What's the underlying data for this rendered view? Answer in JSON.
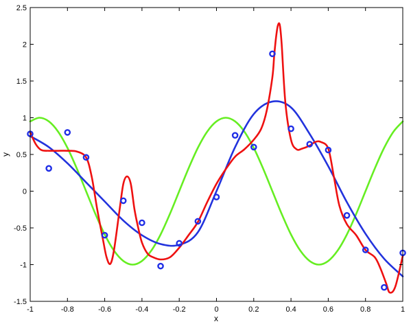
{
  "chart_data": {
    "type": "line",
    "title": "",
    "xlabel": "x",
    "ylabel": "y",
    "xlim": [
      -1,
      1
    ],
    "ylim": [
      -1.5,
      2.5
    ],
    "xticks": [
      "-1",
      "-0.8",
      "-0.6",
      "-0.4",
      "-0.2",
      "0",
      "0.2",
      "0.4",
      "0.6",
      "0.8",
      "1"
    ],
    "yticks": [
      "-1.5",
      "-1",
      "-0.5",
      "0",
      "0.5",
      "1",
      "1.5",
      "2",
      "2.5"
    ],
    "grid": false,
    "legend": "none",
    "points": {
      "color": "#1f2ee6",
      "x": [
        -1,
        -0.9,
        -0.8,
        -0.7,
        -0.6,
        -0.5,
        -0.4,
        -0.3,
        -0.2,
        -0.1,
        0,
        0.1,
        0.2,
        0.3,
        0.4,
        0.5,
        0.6,
        0.7,
        0.8,
        0.9,
        1
      ],
      "y": [
        0.78,
        0.31,
        0.8,
        0.46,
        -0.6,
        -0.13,
        -0.43,
        -1.02,
        -0.71,
        -0.41,
        -0.08,
        0.76,
        0.6,
        1.87,
        0.85,
        0.64,
        0.56,
        -0.33,
        -0.8,
        -1.31,
        -0.84
      ]
    },
    "series": [
      {
        "color": "#66ee22",
        "x": [
          -1,
          -0.95,
          -0.9,
          -0.85,
          -0.8,
          -0.75,
          -0.7,
          -0.65,
          -0.6,
          -0.55,
          -0.5,
          -0.45,
          -0.4,
          -0.35,
          -0.3,
          -0.25,
          -0.2,
          -0.15,
          -0.1,
          -0.05,
          0,
          0.05,
          0.1,
          0.15,
          0.2,
          0.25,
          0.3,
          0.35,
          0.4,
          0.45,
          0.5,
          0.55,
          0.6,
          0.65,
          0.7,
          0.75,
          0.8,
          0.85,
          0.9,
          0.95,
          1
        ],
        "y": [
          0.95,
          1.0,
          0.95,
          0.81,
          0.59,
          0.31,
          0.0,
          -0.31,
          -0.59,
          -0.81,
          -0.95,
          -1.0,
          -0.95,
          -0.81,
          -0.59,
          -0.31,
          0.0,
          0.31,
          0.59,
          0.81,
          0.95,
          1.0,
          0.95,
          0.81,
          0.59,
          0.31,
          0.0,
          -0.31,
          -0.59,
          -0.81,
          -0.95,
          -1.0,
          -0.95,
          -0.81,
          -0.59,
          -0.31,
          0.0,
          0.31,
          0.59,
          0.81,
          0.95
        ]
      },
      {
        "color": "#2233dd",
        "x": [
          -1,
          -0.9,
          -0.8,
          -0.7,
          -0.6,
          -0.5,
          -0.4,
          -0.3,
          -0.2,
          -0.1,
          0,
          0.1,
          0.2,
          0.3,
          0.4,
          0.5,
          0.6,
          0.7,
          0.8,
          0.9,
          1
        ],
        "y": [
          0.75,
          0.6,
          0.38,
          0.12,
          -0.14,
          -0.4,
          -0.6,
          -0.72,
          -0.73,
          -0.56,
          0.0,
          0.6,
          1.05,
          1.22,
          1.14,
          0.78,
          0.34,
          -0.15,
          -0.58,
          -0.92,
          -1.16
        ]
      },
      {
        "color": "#ee1111",
        "x": [
          -1,
          -0.97,
          -0.94,
          -0.9,
          -0.85,
          -0.8,
          -0.75,
          -0.7,
          -0.67,
          -0.64,
          -0.61,
          -0.59,
          -0.57,
          -0.55,
          -0.52,
          -0.5,
          -0.48,
          -0.46,
          -0.44,
          -0.42,
          -0.4,
          -0.37,
          -0.34,
          -0.3,
          -0.25,
          -0.2,
          -0.15,
          -0.1,
          -0.05,
          0,
          0.05,
          0.1,
          0.15,
          0.2,
          0.24,
          0.27,
          0.3,
          0.31,
          0.32,
          0.33,
          0.34,
          0.35,
          0.37,
          0.4,
          0.43,
          0.46,
          0.5,
          0.53,
          0.56,
          0.6,
          0.63,
          0.66,
          0.7,
          0.75,
          0.8,
          0.85,
          0.88,
          0.91,
          0.93,
          0.96,
          1
        ],
        "y": [
          0.8,
          0.64,
          0.56,
          0.55,
          0.55,
          0.55,
          0.54,
          0.46,
          0.2,
          -0.25,
          -0.65,
          -0.9,
          -0.99,
          -0.8,
          -0.25,
          0.1,
          0.2,
          0.1,
          -0.25,
          -0.5,
          -0.7,
          -0.85,
          -0.9,
          -0.93,
          -0.9,
          -0.77,
          -0.6,
          -0.42,
          -0.15,
          0.1,
          0.3,
          0.47,
          0.57,
          0.7,
          0.85,
          1.1,
          1.55,
          1.85,
          2.1,
          2.26,
          2.26,
          2.0,
          1.2,
          0.7,
          0.57,
          0.58,
          0.62,
          0.67,
          0.67,
          0.58,
          0.2,
          -0.2,
          -0.45,
          -0.6,
          -0.8,
          -0.9,
          -1.05,
          -1.25,
          -1.38,
          -1.3,
          -0.88
        ]
      }
    ]
  }
}
